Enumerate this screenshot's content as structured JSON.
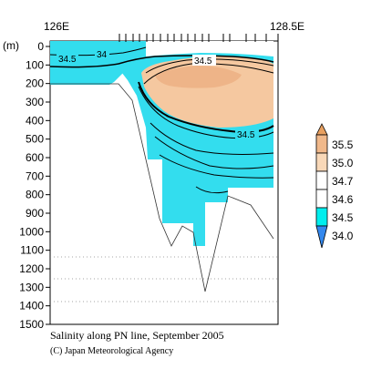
{
  "chart_data": {
    "type": "contour",
    "x_axis_labels": [
      "126E",
      "128.5E"
    ],
    "xlim": [
      126,
      128.5
    ],
    "y_unit": "(m)",
    "y_ticks": [
      0,
      100,
      200,
      300,
      400,
      500,
      600,
      700,
      800,
      900,
      1000,
      1100,
      1200,
      1300,
      1400,
      1500
    ],
    "ylim": [
      1500,
      0
    ],
    "colorbar": {
      "levels": [
        "35.5",
        "35.0",
        "34.7",
        "34.6",
        "34.5",
        "34.0"
      ],
      "colors": [
        "#e8a060",
        "#f0b88a",
        "#f8d8b8",
        "#ffffff",
        "#00eeee",
        "#3388ee"
      ]
    },
    "contour_labels": [
      "34.5",
      "34",
      "34.5",
      "34.5"
    ],
    "caption": "Salinity along PN line, September 2005",
    "credit": "(C) Japan Meteorological Agency",
    "station_longitudes": [
      126.0,
      126.25,
      126.5,
      126.75,
      127.0,
      127.12,
      127.25,
      127.37,
      127.5,
      127.62,
      127.75,
      127.87,
      128.0,
      128.12,
      128.25,
      128.37,
      128.5
    ],
    "station_depths": [
      100,
      100,
      100,
      100,
      200,
      750,
      980,
      1080,
      1050,
      1300,
      1100,
      900,
      1000,
      800,
      750,
      850,
      1000
    ]
  }
}
